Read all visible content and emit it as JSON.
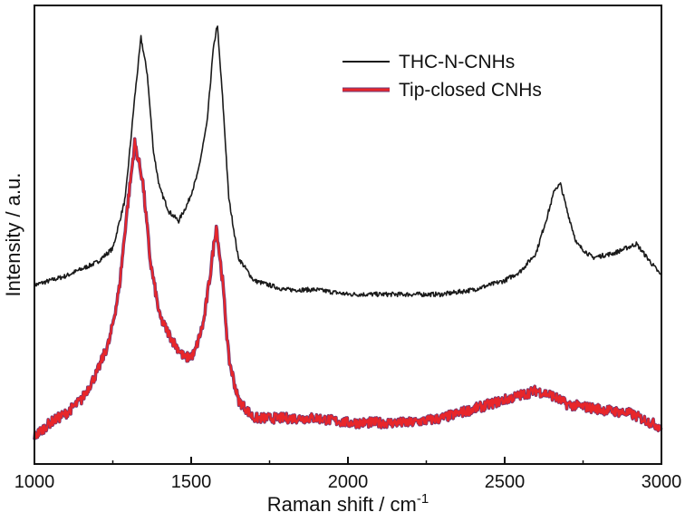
{
  "chart_data": {
    "type": "line",
    "title": "",
    "xlabel": "Raman shift / cm",
    "xlabel_superscript": "-1",
    "ylabel": "Intensity / a.u.",
    "xlim": [
      1000,
      3000
    ],
    "ylim": [
      0,
      1
    ],
    "x_ticks": [
      1000,
      1500,
      2000,
      2500,
      3000
    ],
    "x_tick_labels": [
      "1000",
      "1500",
      "2000",
      "2500",
      "3000"
    ],
    "y_ticks_shown": false,
    "grid": false,
    "legend_position": "top-right",
    "series": [
      {
        "name": "THC-N-CNHs",
        "color": "#1a1a1a",
        "x": [
          1000,
          1100,
          1200,
          1250,
          1290,
          1320,
          1340,
          1360,
          1380,
          1400,
          1430,
          1460,
          1490,
          1520,
          1550,
          1570,
          1583,
          1600,
          1620,
          1650,
          1700,
          1800,
          1900,
          2000,
          2100,
          2200,
          2300,
          2400,
          2500,
          2550,
          2600,
          2640,
          2660,
          2678,
          2700,
          2730,
          2780,
          2850,
          2920,
          3000
        ],
        "y": [
          0.39,
          0.41,
          0.44,
          0.47,
          0.58,
          0.8,
          0.93,
          0.85,
          0.68,
          0.6,
          0.55,
          0.53,
          0.57,
          0.63,
          0.74,
          0.9,
          0.96,
          0.8,
          0.58,
          0.45,
          0.4,
          0.38,
          0.38,
          0.37,
          0.37,
          0.37,
          0.37,
          0.38,
          0.4,
          0.42,
          0.46,
          0.55,
          0.6,
          0.61,
          0.55,
          0.48,
          0.45,
          0.46,
          0.48,
          0.41
        ]
      },
      {
        "name": "Tip-closed CNHs",
        "color": "#e8262a",
        "outline_color": "#6b3a78",
        "x": [
          1000,
          1050,
          1100,
          1150,
          1200,
          1240,
          1270,
          1295,
          1320,
          1345,
          1370,
          1400,
          1440,
          1480,
          1510,
          1540,
          1560,
          1580,
          1600,
          1620,
          1650,
          1700,
          1800,
          1900,
          2000,
          2100,
          2200,
          2300,
          2400,
          2450,
          2500,
          2550,
          2600,
          2650,
          2700,
          2800,
          2900,
          3000
        ],
        "y": [
          0.06,
          0.09,
          0.11,
          0.14,
          0.2,
          0.27,
          0.38,
          0.55,
          0.7,
          0.62,
          0.44,
          0.32,
          0.27,
          0.23,
          0.24,
          0.31,
          0.41,
          0.52,
          0.4,
          0.23,
          0.14,
          0.1,
          0.1,
          0.1,
          0.09,
          0.09,
          0.09,
          0.1,
          0.12,
          0.13,
          0.14,
          0.15,
          0.16,
          0.15,
          0.13,
          0.12,
          0.11,
          0.08
        ]
      }
    ]
  }
}
